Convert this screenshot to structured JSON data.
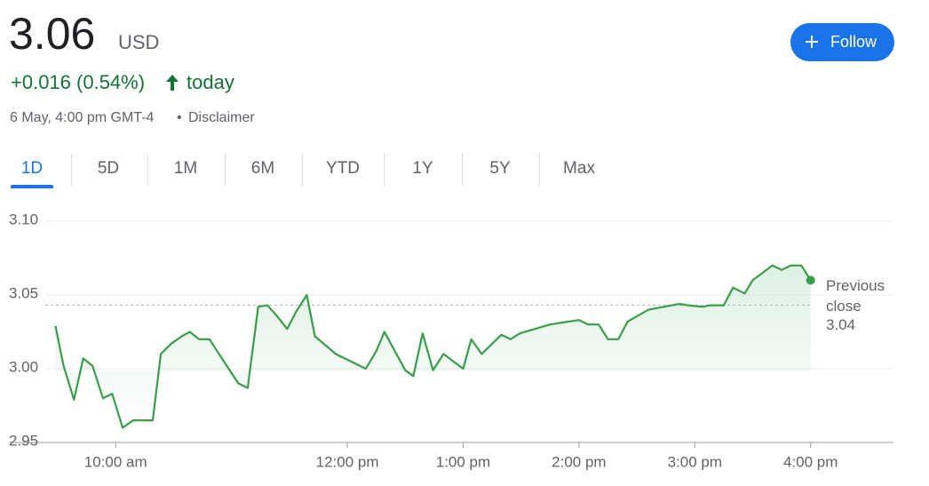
{
  "quote": {
    "price": "3.06",
    "currency": "USD",
    "change": "+0.016 (0.54%)",
    "period": "today",
    "timestamp": "6 May, 4:00 pm GMT-4",
    "disclaimer": "Disclaimer"
  },
  "follow": "Follow",
  "tabs": [
    "1D",
    "5D",
    "1M",
    "6M",
    "YTD",
    "1Y",
    "5Y",
    "Max"
  ],
  "active_tab": "1D",
  "chart_data": {
    "type": "line",
    "x": [
      9.48,
      9.55,
      9.64,
      9.72,
      9.8,
      9.89,
      9.97,
      10.06,
      10.15,
      10.32,
      10.39,
      10.48,
      10.57,
      10.64,
      10.72,
      10.81,
      11.0,
      11.06,
      11.14,
      11.23,
      11.31,
      11.39,
      11.48,
      11.56,
      11.65,
      11.72,
      11.9,
      12.16,
      12.25,
      12.32,
      12.5,
      12.57,
      12.65,
      12.74,
      12.83,
      13.0,
      13.07,
      13.16,
      13.33,
      13.41,
      13.49,
      13.75,
      14.0,
      14.08,
      14.17,
      14.25,
      14.34,
      14.42,
      14.6,
      14.87,
      14.94,
      15.07,
      15.13,
      15.21,
      15.25,
      15.33,
      15.43,
      15.5,
      15.67,
      15.75,
      15.83,
      15.92,
      16.0
    ],
    "series": [
      {
        "color": "#3a9d4a",
        "values": [
          3.029,
          3.002,
          2.979,
          3.007,
          3.002,
          2.98,
          2.983,
          2.96,
          2.965,
          2.965,
          3.01,
          3.017,
          3.022,
          3.025,
          3.02,
          3.02,
          2.997,
          2.99,
          2.987,
          3.042,
          3.043,
          3.036,
          3.027,
          3.039,
          3.05,
          3.022,
          3.01,
          3.0,
          3.012,
          3.025,
          2.999,
          2.995,
          3.024,
          2.999,
          3.01,
          3.0,
          3.02,
          3.01,
          3.023,
          3.02,
          3.024,
          3.03,
          3.033,
          3.03,
          3.03,
          3.02,
          3.02,
          3.032,
          3.04,
          3.044,
          3.043,
          3.042,
          3.043,
          3.043,
          3.043,
          3.055,
          3.051,
          3.06,
          3.07,
          3.067,
          3.07,
          3.07,
          3.06
        ]
      }
    ],
    "xlim": [
      9.4,
      16.7
    ],
    "xticks": [
      {
        "value": 10,
        "label": "10:00 am"
      },
      {
        "value": 12,
        "label": "12:00 pm"
      },
      {
        "value": 13,
        "label": "1:00 pm"
      },
      {
        "value": 14,
        "label": "2:00 pm"
      },
      {
        "value": 15,
        "label": "3:00 pm"
      },
      {
        "value": 16,
        "label": "4:00 pm"
      }
    ],
    "ylim": [
      2.95,
      3.1
    ],
    "yticks": [
      2.95,
      {
        "value": 3,
        "label": "3.00"
      },
      3.05,
      {
        "value": 3.1,
        "label": "3.10"
      }
    ],
    "grid": true,
    "previous_close": {
      "text": "Previous close",
      "value": 3.043,
      "value_label": "3.04"
    }
  }
}
